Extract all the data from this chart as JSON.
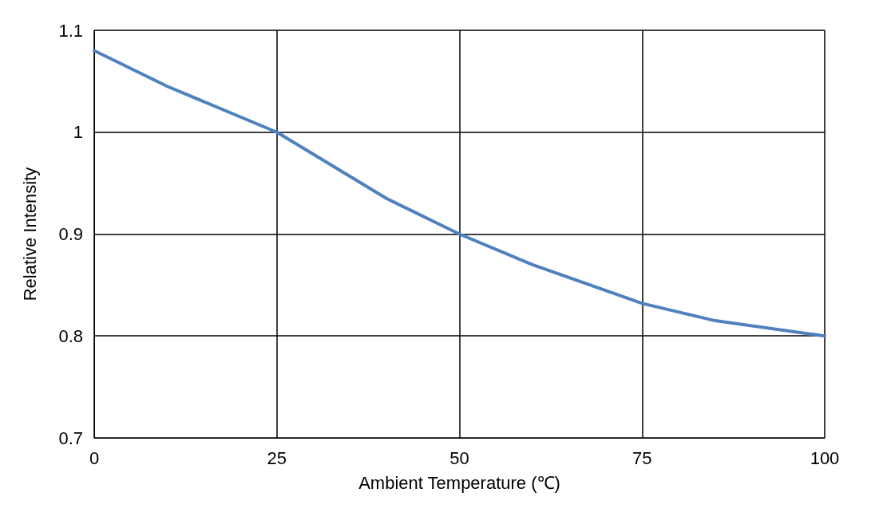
{
  "chart_data": {
    "type": "line",
    "xlabel": "Ambient Temperature (℃)",
    "ylabel": "Relative Intensity",
    "x": [
      0,
      10,
      25,
      40,
      50,
      60,
      75,
      85,
      100
    ],
    "series": [
      {
        "color": "#4f81bd",
        "values": [
          1.08,
          1.045,
          1.0,
          0.935,
          0.9,
          0.87,
          0.832,
          0.815,
          0.8
        ]
      }
    ],
    "xlim": [
      0,
      100
    ],
    "xticks": [
      0,
      25,
      50,
      75,
      100
    ],
    "ylim": [
      0.7,
      1.1
    ],
    "yticks": [
      0.7,
      0.8,
      0.9,
      1,
      1.1
    ],
    "grid": true,
    "marker": "none",
    "line_style": "solid"
  }
}
